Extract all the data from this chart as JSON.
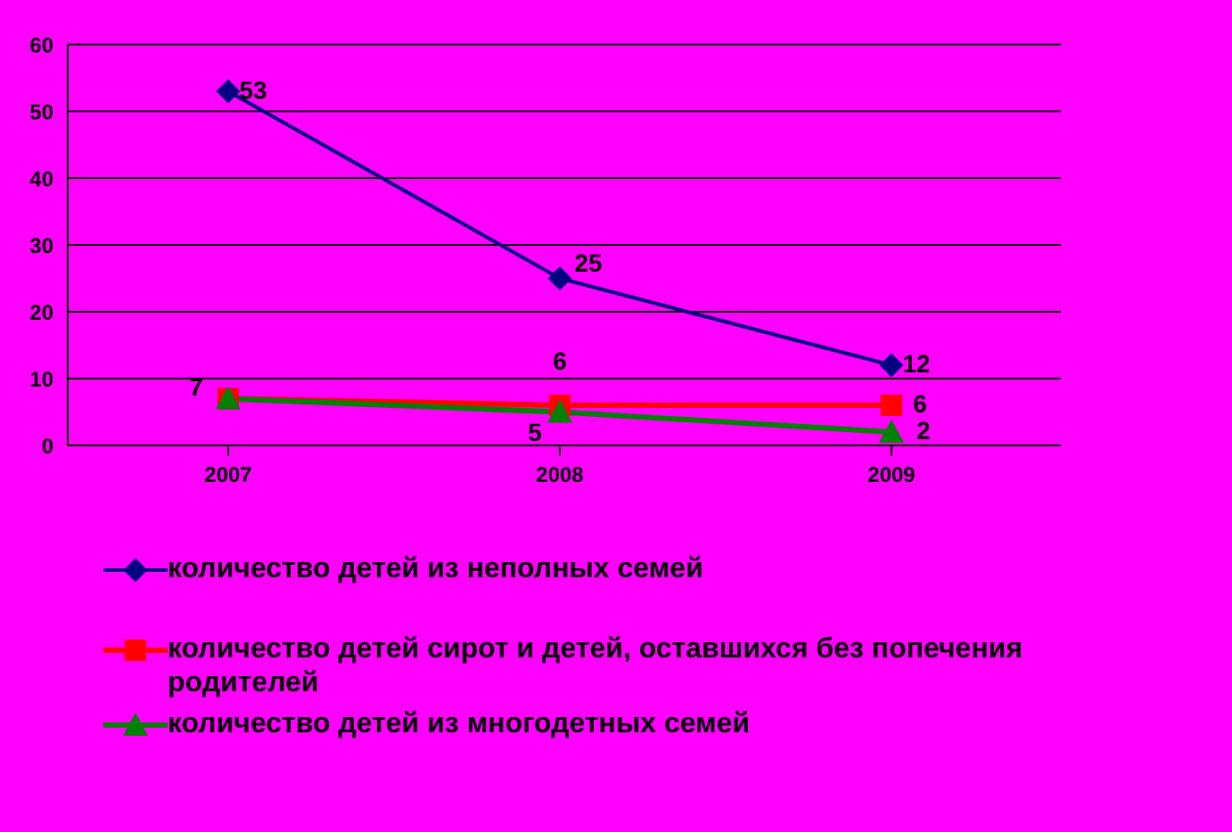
{
  "chart_data": {
    "type": "line",
    "categories": [
      "2007",
      "2008",
      "2009"
    ],
    "ylim": [
      0,
      60
    ],
    "yticks": [
      0,
      10,
      20,
      30,
      40,
      50,
      60
    ],
    "grid": "y",
    "legend": "bottom",
    "series": [
      {
        "name": "количество детей из неполных семей",
        "color": "#000080",
        "marker": "diamond",
        "values": [
          53,
          25,
          12
        ],
        "value_labels": [
          "53",
          "25",
          "12"
        ]
      },
      {
        "name": "количество детей сирот и детей, оставшихся без попечения родителей",
        "color": "#ff0000",
        "marker": "square",
        "values": [
          7,
          6,
          6
        ],
        "value_labels": [
          "7",
          "6",
          "6"
        ]
      },
      {
        "name": "количество детей из многодетных семей",
        "color": "#008000",
        "marker": "triangle",
        "values": [
          7,
          5,
          2
        ],
        "value_labels": [
          null,
          "5",
          "2"
        ]
      }
    ]
  }
}
